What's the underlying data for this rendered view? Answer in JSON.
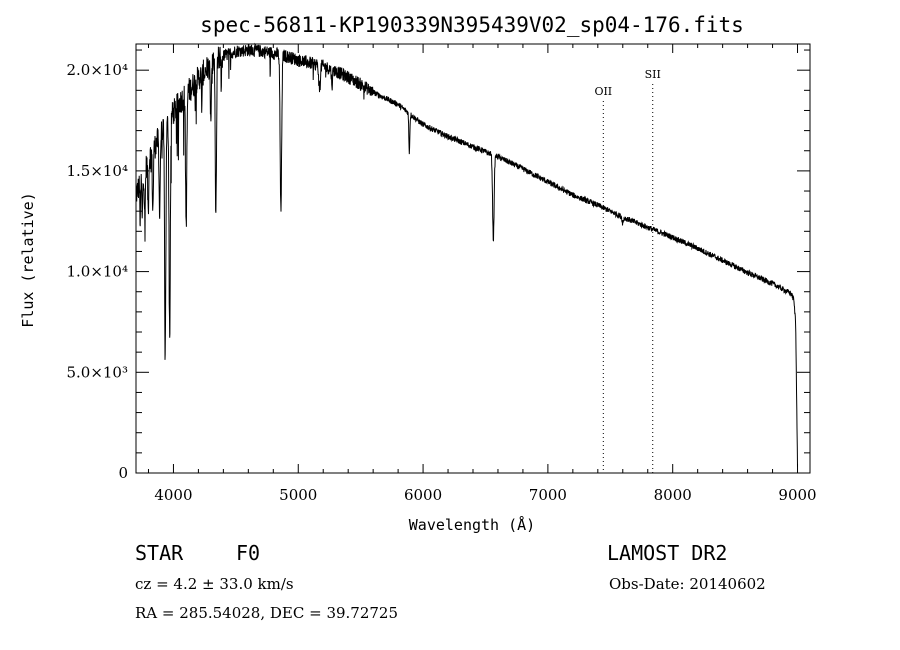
{
  "chart_data": {
    "type": "line",
    "title": "spec-56811-KP190339N395439V02_sp04-176.fits",
    "xlabel": "Wavelength (Å)",
    "ylabel": "Flux (relative)",
    "xlim": [
      3700,
      9100
    ],
    "ylim": [
      0,
      21300
    ],
    "x_ticks": [
      4000,
      5000,
      6000,
      7000,
      8000,
      9000
    ],
    "x_tick_labels": [
      "4000",
      "5000",
      "6000",
      "7000",
      "8000",
      "9000"
    ],
    "y_ticks": [
      0,
      5000,
      10000,
      15000,
      20000
    ],
    "y_tick_labels": [
      "0",
      "5.0×10³",
      "1.0×10⁴",
      "1.5×10⁴",
      "2.0×10⁴"
    ],
    "series": [
      {
        "name": "spectrum",
        "continuum": {
          "x": [
            3700,
            3750,
            3800,
            3850,
            3900,
            3950,
            4000,
            4050,
            4100,
            4150,
            4200,
            4300,
            4400,
            4500,
            4600,
            4700,
            4800,
            4900,
            5000,
            5100,
            5200,
            5300,
            5400,
            5500,
            5600,
            5800,
            6000,
            6200,
            6400,
            6600,
            6800,
            7000,
            7200,
            7400,
            7600,
            7800,
            8000,
            8200,
            8400,
            8600,
            8800,
            8950,
            8970,
            8985,
            9000
          ],
          "y": [
            13800,
            14700,
            15600,
            16200,
            16900,
            17300,
            17900,
            18400,
            18800,
            19200,
            19600,
            20300,
            20700,
            20950,
            21000,
            20950,
            20850,
            20700,
            20500,
            20350,
            20200,
            19950,
            19650,
            19300,
            18900,
            18300,
            17300,
            16700,
            16200,
            15700,
            15100,
            14450,
            13800,
            13300,
            12700,
            12200,
            11700,
            11150,
            10550,
            9950,
            9400,
            8900,
            8600,
            7500,
            300
          ]
        },
        "absorption_lines": [
          {
            "wavelength": 3734,
            "depth": 2000,
            "width": 3
          },
          {
            "wavelength": 3750,
            "depth": 2300,
            "width": 3
          },
          {
            "wavelength": 3771,
            "depth": 2500,
            "width": 4
          },
          {
            "wavelength": 3798,
            "depth": 2500,
            "width": 4
          },
          {
            "wavelength": 3835,
            "depth": 3000,
            "width": 4
          },
          {
            "wavelength": 3889,
            "depth": 3600,
            "width": 5
          },
          {
            "wavelength": 3934,
            "depth": 11000,
            "width": 5
          },
          {
            "wavelength": 3970,
            "depth": 11000,
            "width": 5
          },
          {
            "wavelength": 4102,
            "depth": 6500,
            "width": 5
          },
          {
            "wavelength": 4227,
            "depth": 1500,
            "width": 3
          },
          {
            "wavelength": 4300,
            "depth": 2800,
            "width": 5
          },
          {
            "wavelength": 4340,
            "depth": 7800,
            "width": 5
          },
          {
            "wavelength": 4383,
            "depth": 1200,
            "width": 3
          },
          {
            "wavelength": 4861,
            "depth": 7800,
            "width": 6
          },
          {
            "wavelength": 5170,
            "depth": 1200,
            "width": 6
          },
          {
            "wavelength": 5270,
            "depth": 800,
            "width": 4
          },
          {
            "wavelength": 5890,
            "depth": 1900,
            "width": 4
          },
          {
            "wavelength": 6563,
            "depth": 4200,
            "width": 6
          },
          {
            "wavelength": 7600,
            "depth": 300,
            "width": 5
          }
        ]
      }
    ],
    "annotations": [
      {
        "label": "OII",
        "x": 7444
      },
      {
        "label": "SII",
        "x": 7840
      }
    ],
    "grid": false
  },
  "info": {
    "object_class": "STAR",
    "subclass": "F0",
    "survey": "LAMOST DR2",
    "redshift_line": "cz = 4.2 ± 33.0 km/s",
    "obs_date_line": "Obs-Date: 20140602",
    "coords_line": "RA = 285.54028, DEC =  39.72725"
  }
}
